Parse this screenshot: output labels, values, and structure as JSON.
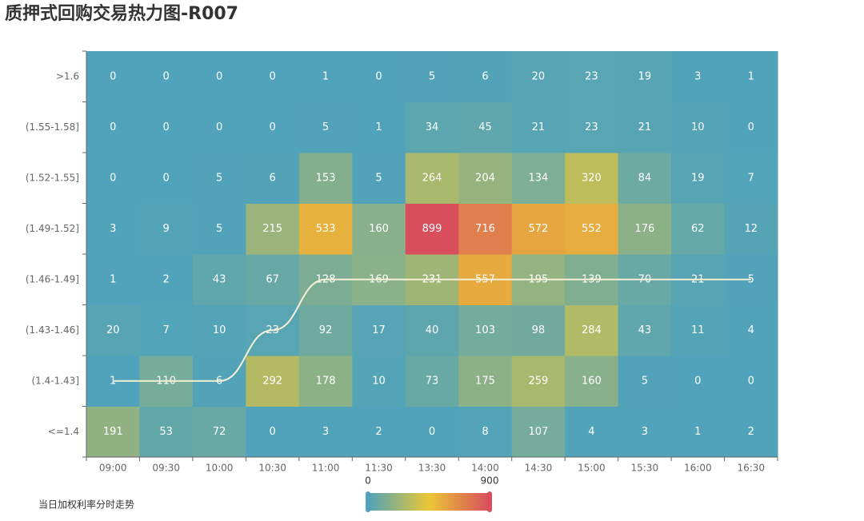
{
  "chart_data": {
    "type": "heatmap",
    "title": "质押式回购交易热力图-R007",
    "categories": [
      "09:00",
      "09:30",
      "10:00",
      "10:30",
      "11:00",
      "11:30",
      "13:30",
      "14:00",
      "14:30",
      "15:00",
      "15:30",
      "16:00",
      "16:30"
    ],
    "y_categories": [
      "<=1.4",
      "(1.4-1.43]",
      "(1.43-1.46]",
      "(1.46-1.49]",
      "(1.49-1.52]",
      "(1.52-1.55]",
      "(1.55-1.58]",
      ">1.6"
    ],
    "values": [
      [
        191,
        53,
        72,
        0,
        3,
        2,
        0,
        8,
        107,
        4,
        3,
        1,
        2
      ],
      [
        1,
        110,
        6,
        292,
        178,
        10,
        73,
        175,
        259,
        160,
        5,
        0,
        0
      ],
      [
        20,
        7,
        10,
        23,
        92,
        17,
        40,
        103,
        98,
        284,
        43,
        11,
        4
      ],
      [
        1,
        2,
        43,
        67,
        128,
        169,
        231,
        557,
        195,
        139,
        70,
        21,
        5
      ],
      [
        3,
        9,
        5,
        215,
        533,
        160,
        899,
        716,
        572,
        552,
        176,
        62,
        12
      ],
      [
        0,
        0,
        5,
        6,
        153,
        5,
        264,
        204,
        134,
        320,
        84,
        19,
        7
      ],
      [
        0,
        0,
        0,
        0,
        5,
        1,
        34,
        45,
        21,
        23,
        21,
        10,
        0
      ],
      [
        0,
        0,
        0,
        0,
        1,
        0,
        5,
        6,
        20,
        23,
        19,
        3,
        1
      ]
    ],
    "visual_map": {
      "range": [
        0,
        900
      ],
      "colors": [
        "#50a3ba",
        "#eac736",
        "#d94e5d"
      ]
    },
    "line": {
      "name": "当日加权利率分时走势",
      "color": "#f5efd6",
      "values": [
        1,
        1,
        1,
        2,
        3,
        3,
        3,
        3,
        3,
        3,
        3,
        3,
        3
      ]
    }
  }
}
